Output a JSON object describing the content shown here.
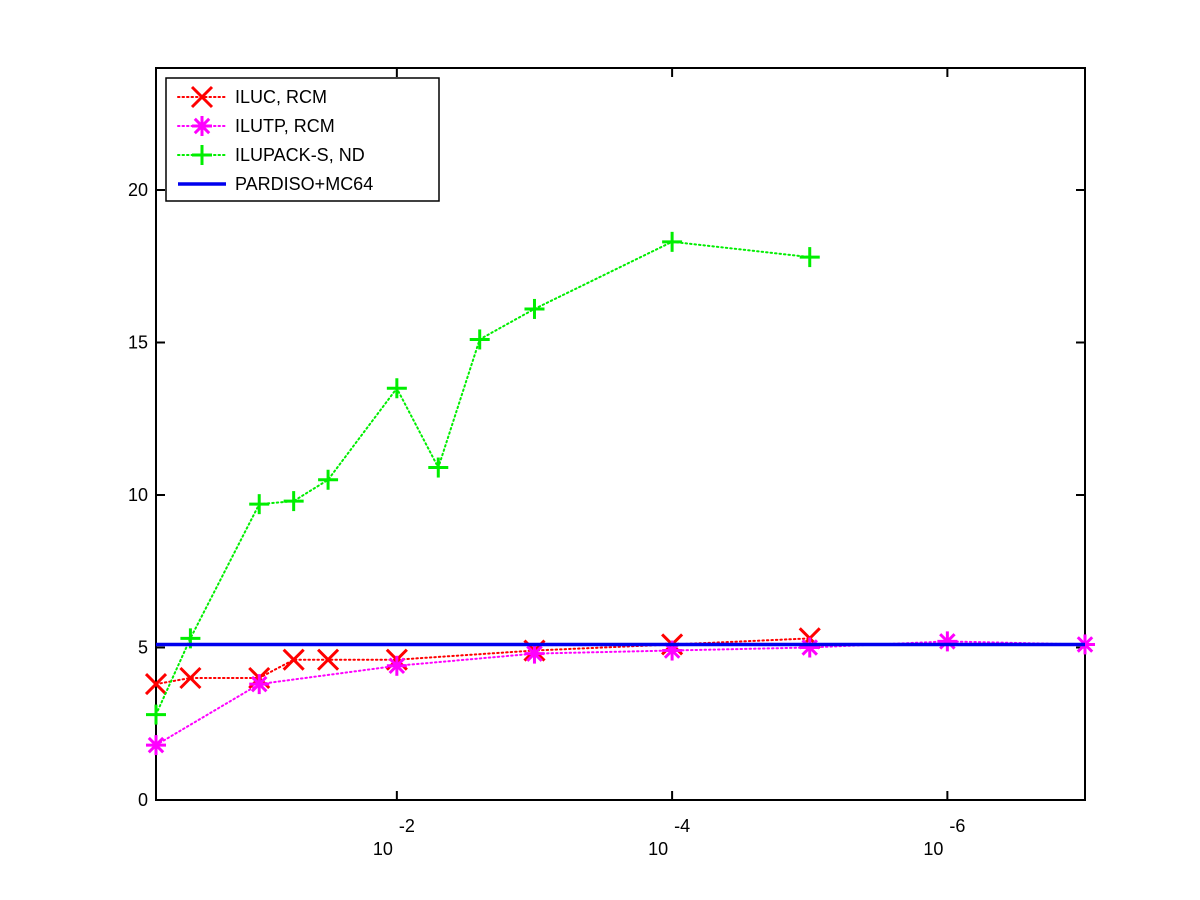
{
  "chart_data": {
    "type": "line",
    "title": "",
    "xlabel": "",
    "ylabel": "",
    "x_scale": "log-reversed",
    "xlim": [
      0.5623,
      1e-07
    ],
    "ylim": [
      0,
      24
    ],
    "grid": false,
    "legend_position": "top-left",
    "y_ticks": [
      {
        "value": 0,
        "label": "0"
      },
      {
        "value": 5,
        "label": "5"
      },
      {
        "value": 10,
        "label": "10"
      },
      {
        "value": 15,
        "label": "15"
      },
      {
        "value": 20,
        "label": "20"
      }
    ],
    "x_ticks": [
      {
        "value": 0.01,
        "base": "10",
        "exponent": "-2"
      },
      {
        "value": 0.0001,
        "base": "10",
        "exponent": "-4"
      },
      {
        "value": 1e-06,
        "base": "10",
        "exponent": "-6"
      }
    ],
    "series": [
      {
        "name": "ILUC, RCM",
        "color": "#ff0000",
        "marker": "x",
        "line_style": "dotted",
        "points": [
          {
            "x": 0.5623,
            "y": 3.8
          },
          {
            "x": 0.3162,
            "y": 4.0
          },
          {
            "x": 0.1,
            "y": 4.0
          },
          {
            "x": 0.0562,
            "y": 4.6
          },
          {
            "x": 0.0316,
            "y": 4.6
          },
          {
            "x": 0.01,
            "y": 4.6
          },
          {
            "x": 0.001,
            "y": 4.9
          },
          {
            "x": 0.0001,
            "y": 5.1
          },
          {
            "x": 1e-05,
            "y": 5.3
          }
        ]
      },
      {
        "name": "ILUTP, RCM",
        "color": "#ff00ff",
        "marker": "asterisk",
        "line_style": "dotted",
        "points": [
          {
            "x": 0.5623,
            "y": 1.8
          },
          {
            "x": 0.1,
            "y": 3.8
          },
          {
            "x": 0.01,
            "y": 4.4
          },
          {
            "x": 0.001,
            "y": 4.8
          },
          {
            "x": 0.0001,
            "y": 4.9
          },
          {
            "x": 1e-05,
            "y": 5.0
          },
          {
            "x": 1e-06,
            "y": 5.2
          },
          {
            "x": 1e-07,
            "y": 5.1
          }
        ]
      },
      {
        "name": "ILUPACK-S, ND",
        "color": "#00ee00",
        "marker": "plus",
        "line_style": "dotted",
        "points": [
          {
            "x": 0.5623,
            "y": 2.8
          },
          {
            "x": 0.3162,
            "y": 5.3
          },
          {
            "x": 0.1,
            "y": 9.7
          },
          {
            "x": 0.0562,
            "y": 9.8
          },
          {
            "x": 0.0316,
            "y": 10.5
          },
          {
            "x": 0.01,
            "y": 13.5
          },
          {
            "x": 0.005,
            "y": 10.9
          },
          {
            "x": 0.0025,
            "y": 15.1
          },
          {
            "x": 0.001,
            "y": 16.1
          },
          {
            "x": 0.0001,
            "y": 18.3
          },
          {
            "x": 1e-05,
            "y": 17.8
          }
        ]
      },
      {
        "name": "PARDISO+MC64",
        "color": "#0000ee",
        "marker": "none",
        "line_style": "solid",
        "points": [
          {
            "x": 0.5623,
            "y": 5.1
          },
          {
            "x": 1e-07,
            "y": 5.1
          }
        ]
      }
    ]
  }
}
